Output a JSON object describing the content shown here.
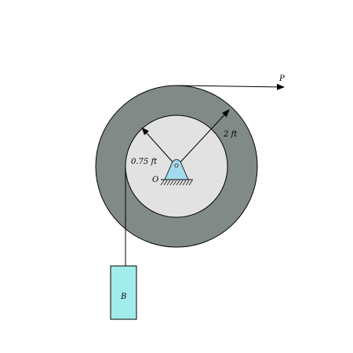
{
  "labels": {
    "force": "P",
    "outer_radius": "2 ft",
    "inner_radius": "0.75 ft",
    "pivot": "O",
    "block": "B"
  },
  "colors": {
    "outer_disk": "#818a87",
    "inner_disk": "#e2e2e2",
    "support": "#a5d9ee",
    "block": "#a2ecec",
    "stroke": "#000000"
  }
}
